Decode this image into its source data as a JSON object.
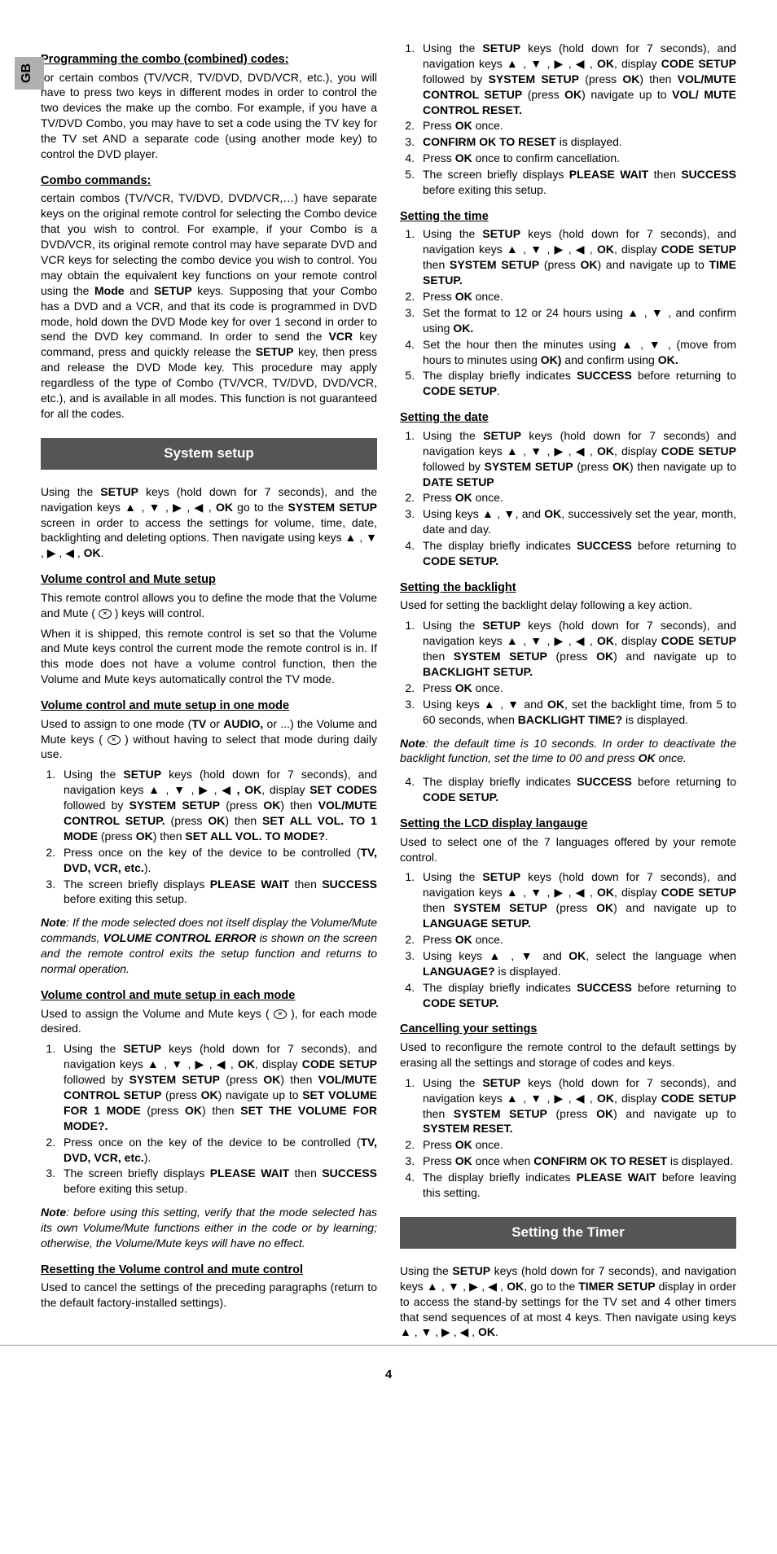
{
  "langTab": "GB",
  "pageNumber": "4",
  "arrows": "▲ , ▼ , ▶ , ◀",
  "col1": {
    "h1": "Programming the combo (combined) codes:",
    "p1": "for certain combos (TV/VCR, TV/DVD, DVD/VCR, etc.), you will have to press two keys in different modes in order to control the two devices the make up the combo.  For example, if you have a TV/DVD Combo, you may have to set a code using the TV key for the TV set AND a separate code (using another mode key) to control the DVD player.",
    "h2": "Combo commands:",
    "p2a": "certain combos (TV/VCR, TV/DVD, DVD/VCR,…) have separate keys on the original remote control for selecting the Combo device that you wish to control. For example, if your Combo is a DVD/VCR, its original remote control may have separate DVD and VCR keys for selecting the combo device you wish to control. You may obtain the equivalent key functions on your remote control using the ",
    "p2b": " keys. Supposing that your Combo has a DVD and a VCR, and that its code is programmed in DVD mode, hold down the DVD Mode key for over 1 second in order to send the DVD key command.  In order to send the ",
    "p2c": " key command, press and quickly release the ",
    "p2d": " key, then press and release the DVD Mode key.  This procedure may apply regardless of the type of Combo (TV/VCR, TV/DVD, DVD/VCR, etc.), and is available in all modes.  This function is not guaranteed for all the codes.",
    "mode": "Mode",
    "setup": "SETUP",
    "vcr": "VCR",
    "bar1": "System setup",
    "p3a": "Using the ",
    "p3b": " keys (hold down for 7 seconds), and the navigation keys ",
    "ok": "OK",
    "p3c": " go to the ",
    "sysSetup": "SYSTEM SETUP",
    "p3d": " screen in order to access the settings for volume, time, date, backlighting and deleting options. Then navigate using keys ",
    "h3": "Volume control and Mute setup",
    "p4a": "This remote control allows you to define the mode that the Volume and Mute ( ",
    "p4b": " ) keys will control.",
    "p5": "When it is shipped, this remote control is set so that the Volume and Mute keys control the current mode the remote control is in. If this mode does not have a volume control function, then the Volume and Mute keys automatically control the TV mode.",
    "h4": "Volume control and mute setup in one mode",
    "p6a": "Used to assign to one mode (",
    "tv": "TV",
    "p6b": " or ",
    "audio": "AUDIO,",
    "p6c": " or ...) the Volume and Mute keys ( ",
    "p6d": " ) without having to select that mode during daily use.",
    "li1a": "Using the ",
    "li1b": " keys (hold down for 7 seconds), and navigation keys ",
    "li1c": ", display ",
    "setCodes": "SET CODES",
    "li1d": " followed by ",
    "li1e": " (press ",
    "li1f": ") then ",
    "volMute": "VOL/MUTE CONTROL SETUP.",
    "li1g": " (press ",
    "li1h": ") then ",
    "setAllVol": "SET ALL VOL. TO 1 MODE",
    "li1i": " (press ",
    "li1j": ") then ",
    "setAllVolTo": "SET ALL VOL. TO MODE?",
    "li2a": "Press once on the key of the device to be controlled (",
    "tvDvdVcr": "TV, DVD, VCR, etc.",
    "li2b": ").",
    "li3a": "The screen briefly displays ",
    "pleaseWait": "PLEASE WAIT",
    "li3b": " then ",
    "success": "SUCCESS",
    "li3c": " before exiting this setup.",
    "note1a": "Note",
    "note1b": ": If the mode selected does not itself display the Volume/Mute commands, ",
    "volErr": "VOLUME CONTROL ERROR",
    "note1c": " is shown on the screen and the remote control exits the setup function and returns to normal operation.",
    "h5": "Volume control and mute setup in each mode",
    "p7a": "Used to assign the Volume and Mute keys ( ",
    "p7b": " ), for each mode desired.",
    "li4a": "Using the ",
    "li4b": " keys (hold down for 7 seconds), and navigation keys ",
    "li4c": ", display ",
    "codeSetup": "CODE SETUP",
    "li4d": " followed by ",
    "li4e": " (press ",
    "li4f": ") then ",
    "volMute2": "VOL/MUTE CONTROL SETUP",
    "li4g": "  (press ",
    "li4h": ") navigate up to ",
    "setVol1": "SET VOLUME FOR 1 MODE",
    "li4i": "  (press ",
    "li4j": ") then ",
    "setVolFor": "SET THE VOLUME FOR MODE?.",
    "note2a": "Note",
    "note2b": ": before using this setting, verify that the mode selected has its own Volume/Mute functions either in the code or by learning; otherwise, the Volume/Mute keys will have no effect.",
    "h6": "Resetting the Volume control and mute control",
    "p8": "Used to cancel the settings of the preceding paragraphs (return to the default factory-installed settings)."
  },
  "col2": {
    "li1a": "Using the ",
    "li1b": " keys (hold down for 7 seconds), and navigation keys ",
    "li1c": ", display ",
    "codeSetup": "CODE SETUP",
    "li1d": " followed by ",
    "sysSetup": "SYSTEM SETUP",
    "li1e": " (press ",
    "ok": "OK",
    "li1f": ") then ",
    "volMute": "VOL/MUTE CONTROL SETUP",
    "li1g": " (press ",
    "li1h": ") navigate up to ",
    "volReset": "VOL/ MUTE CONTROL RESET.",
    "li2": "Press ",
    "li2b": " once.",
    "li3a": "CONFIRM OK TO RESET",
    "li3b": " is displayed.",
    "li4a": "Press ",
    "li4b": " once to confirm cancellation.",
    "li5a": "The screen briefly displays ",
    "pleaseWait": "PLEASE WAIT",
    "li5b": " then ",
    "success": "SUCCESS",
    "li5c": " before exiting this setup.",
    "h1": "Setting the time",
    "t1a": "Using the ",
    "t1b": " keys (hold down for 7 seconds), and navigation keys ",
    "t1c": ", display ",
    "t1d": " then ",
    "t1e": " (press ",
    "t1f": ") and navigate up to ",
    "timeSetup": "TIME SETUP.",
    "t3a": "Set the format to 12 or 24 hours using ",
    "udArrows": "▲ , ▼ ,",
    "t3b": " and confirm using ",
    "okDot": "OK.",
    "t4a": "Set the hour then the minutes using ",
    "t4b": " (move from hours to minutes using ",
    "okParen": "OK)",
    "t4c": " and confirm using ",
    "t5a": "The display briefly indicates ",
    "t5b": " before returning to ",
    "codeSetupDot": "CODE SETUP",
    "h2": "Setting the date",
    "d1a": "Using the ",
    "d1b": " keys (hold down for 7 seconds) and navigation keys ",
    "d1c": ", display ",
    "d1d": " followed by ",
    "d1e": " (press ",
    "d1f": ") then navigate up to ",
    "dateSetup": "DATE SETUP",
    "d3a": "Using keys ",
    "d3b": ", and ",
    "d3c": ", successively set the year, month, date and day.",
    "d4a": "The display briefly indicates ",
    "d4b": " before returning to ",
    "codeSetupDot2": "CODE SETUP.",
    "h3": "Setting the backlight",
    "p1": "Used for setting the backlight delay following a key action.",
    "b1f": ") and navigate up to ",
    "backlightSetup": "BACKLIGHT SETUP.",
    "b2a": "Press ",
    "b2b": "  once.",
    "b3a": "Using keys ",
    "udArrows2": "▲ , ▼",
    "b3b": "  and ",
    "b3c": ", set the backlight time, from 5 to 60 seconds, when ",
    "backlightTime": "BACKLIGHT TIME?",
    "b3d": " is displayed.",
    "note1a": "Note",
    "note1b": ": the default time is 10 seconds. In order to deactivate the backlight function, set the time to 00 and press ",
    "note1c": " once.",
    "b4a": "The display briefly indicates ",
    "b4b": " before returning to ",
    "h4": "Setting the LCD display langauge",
    "p2": "Used to select one of the 7 languages offered by your remote control.",
    "l1f": ") and navigate up to ",
    "langSetup": "LANGUAGE SETUP.",
    "l3a": "Using keys ",
    "l3b": "  and ",
    "l3c": ", select the language when ",
    "language": "LANGUAGE?",
    "l3d": " is displayed.",
    "h5": "Cancelling your settings",
    "p3": "Used to reconfigure the remote control to the default settings by erasing all the settings and storage of codes and keys.",
    "c1f": ") and navigate up to ",
    "sysReset": "SYSTEM RESET.",
    "c3a": "Press ",
    "c3b": " once when ",
    "confirmReset": "CONFIRM OK TO RESET",
    "c3c": " is displayed.",
    "c4a": "The display briefly indicates ",
    "c4b": " before leaving this setting.",
    "bar2": "Setting the Timer",
    "p4a": "Using the ",
    "p4b": " keys (hold down for 7 seconds), and navigation keys ",
    "p4c": ", go to the ",
    "timerSetup": "TIMER SETUP",
    "p4d": " display in order to access the stand-by settings for the TV set and 4 other timers that send sequences of at most 4 keys. Then navigate using keys "
  }
}
